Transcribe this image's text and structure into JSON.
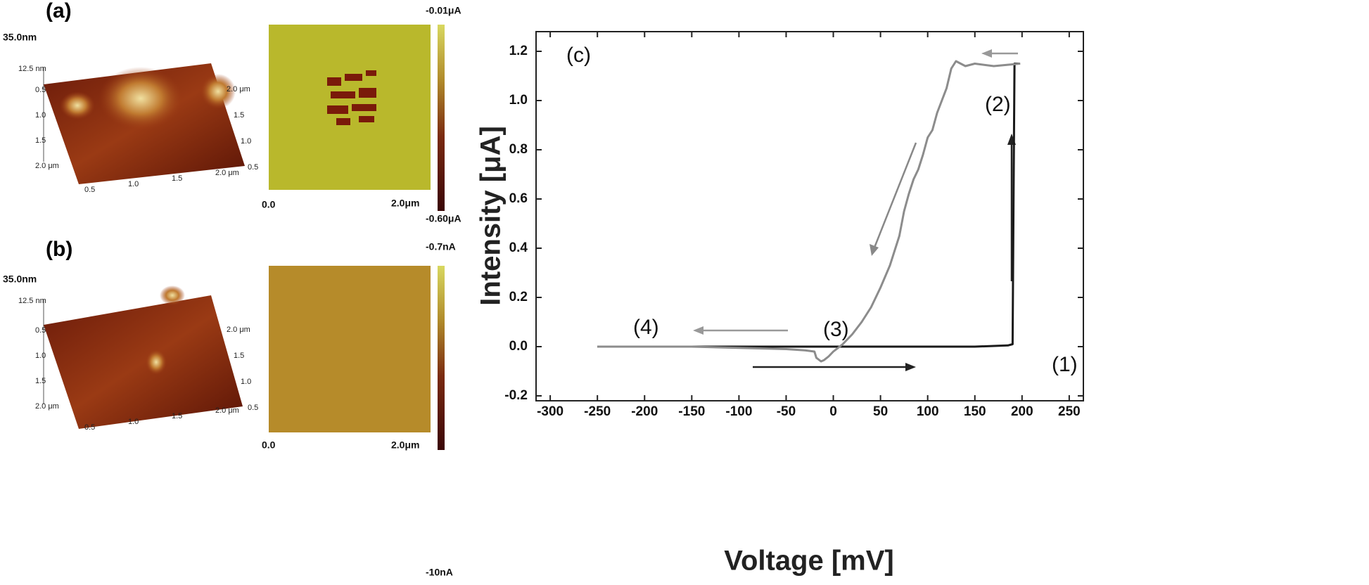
{
  "panels": [
    {
      "label": "(a)",
      "height_max": "35.0nm",
      "z_tick": "12.5 nm",
      "topo_ticks": [
        "0.5",
        "1.0",
        "1.5",
        "2.0 μm"
      ],
      "map_axis": [
        "0.0",
        "2.0μm"
      ],
      "colorbar": [
        "-0.01μA",
        "-0.60μA"
      ]
    },
    {
      "label": "(b)",
      "height_max": "35.0nm",
      "z_tick": "12.5 nm",
      "topo_ticks": [
        "0.5",
        "1.0",
        "1.5",
        "2.0 μm"
      ],
      "map_axis": [
        "0.0",
        "2.0μm"
      ],
      "colorbar": [
        "-0.7nA",
        "-10nA"
      ]
    }
  ],
  "chart_data": {
    "type": "line",
    "xlabel": "Voltage [mV]",
    "ylabel": "Intensity [μA]",
    "annotations": [
      "(c)",
      "(1)",
      "(2)",
      "(3)",
      "(4)"
    ],
    "xlim": [
      -315,
      265
    ],
    "ylim": [
      -0.22,
      1.28
    ],
    "xticks": [
      -300,
      -250,
      -200,
      -150,
      -100,
      -50,
      0,
      50,
      100,
      150,
      200,
      250
    ],
    "yticks": [
      {
        "value": -0.2,
        "label": "-0.2"
      },
      {
        "value": 0,
        "label": "0.0"
      },
      {
        "value": 0.2,
        "label": "0.2"
      },
      {
        "value": 0.4,
        "label": "0.4"
      },
      {
        "value": 0.6,
        "label": "0.6"
      },
      {
        "value": 0.8,
        "label": "0.8"
      },
      {
        "value": 1.0,
        "label": "1.0"
      },
      {
        "value": 1.2,
        "label": "1.2"
      }
    ],
    "series": [
      {
        "color": "#1a1a1a",
        "x": [
          -250,
          -100,
          -20,
          -15,
          0,
          50,
          100,
          150,
          185,
          190,
          191,
          192,
          198
        ],
        "values": [
          0,
          0,
          0,
          0,
          0,
          0,
          0,
          0,
          0.005,
          0.01,
          0.6,
          1.15,
          1.15
        ]
      },
      {
        "color": "#8c8c8c",
        "x": [
          198,
          170,
          150,
          140,
          130,
          125,
          120,
          115,
          110,
          105,
          100,
          95,
          90,
          85,
          80,
          75,
          70,
          60,
          50,
          40,
          30,
          20,
          10,
          5,
          0,
          -5,
          -10,
          -13,
          -18,
          -20,
          -30,
          -50,
          -100,
          -150,
          -200,
          -250
        ],
        "values": [
          1.15,
          1.14,
          1.15,
          1.14,
          1.16,
          1.13,
          1.05,
          1.0,
          0.95,
          0.88,
          0.85,
          0.78,
          0.72,
          0.68,
          0.62,
          0.55,
          0.45,
          0.33,
          0.24,
          0.16,
          0.1,
          0.05,
          0.01,
          -0.005,
          -0.02,
          -0.04,
          -0.055,
          -0.06,
          -0.045,
          -0.02,
          -0.015,
          -0.01,
          -0.005,
          0,
          0,
          0
        ]
      }
    ]
  }
}
